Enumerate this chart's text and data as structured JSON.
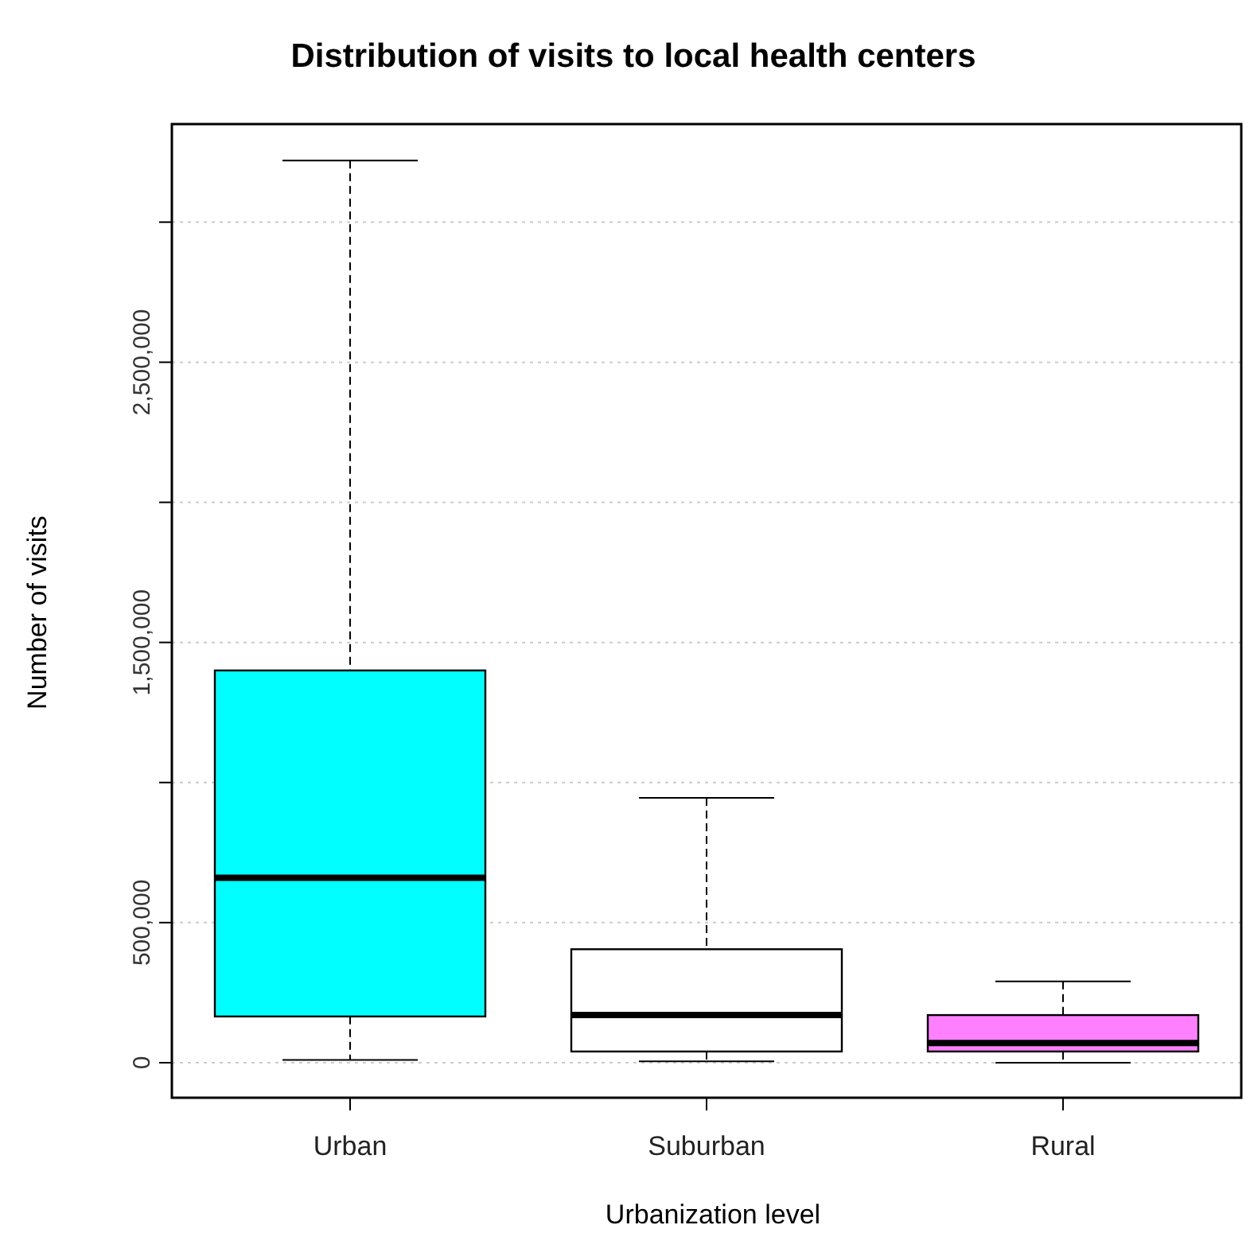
{
  "chart_data": {
    "type": "box",
    "title": "Distribution of visits to local health centers",
    "xlabel": "Urbanization level",
    "ylabel": "Number of visits",
    "categories": [
      "Urban",
      "Suburban",
      "Rural"
    ],
    "colors": [
      "#00ffff",
      "#ffffff",
      "#ff80ff"
    ],
    "boxes": [
      {
        "low": 10000,
        "q1": 165000,
        "median": 660000,
        "q3": 1400000,
        "high": 3220000
      },
      {
        "low": 5000,
        "q1": 40000,
        "median": 170000,
        "q3": 405000,
        "high": 945000
      },
      {
        "low": 0,
        "q1": 40000,
        "median": 70000,
        "q3": 170000,
        "high": 290000
      }
    ],
    "ylim": [
      -125000,
      3350000
    ],
    "yticks": [
      0,
      {
        "value": 500000,
        "label": "500,000"
      },
      {
        "value": 1000000,
        "label": null
      },
      {
        "value": 1500000,
        "label": "1,500,000"
      },
      {
        "value": 2000000,
        "label": null
      },
      {
        "value": 2500000,
        "label": "2,500,000"
      },
      {
        "value": 3000000,
        "label": null
      }
    ],
    "grid": "y"
  }
}
